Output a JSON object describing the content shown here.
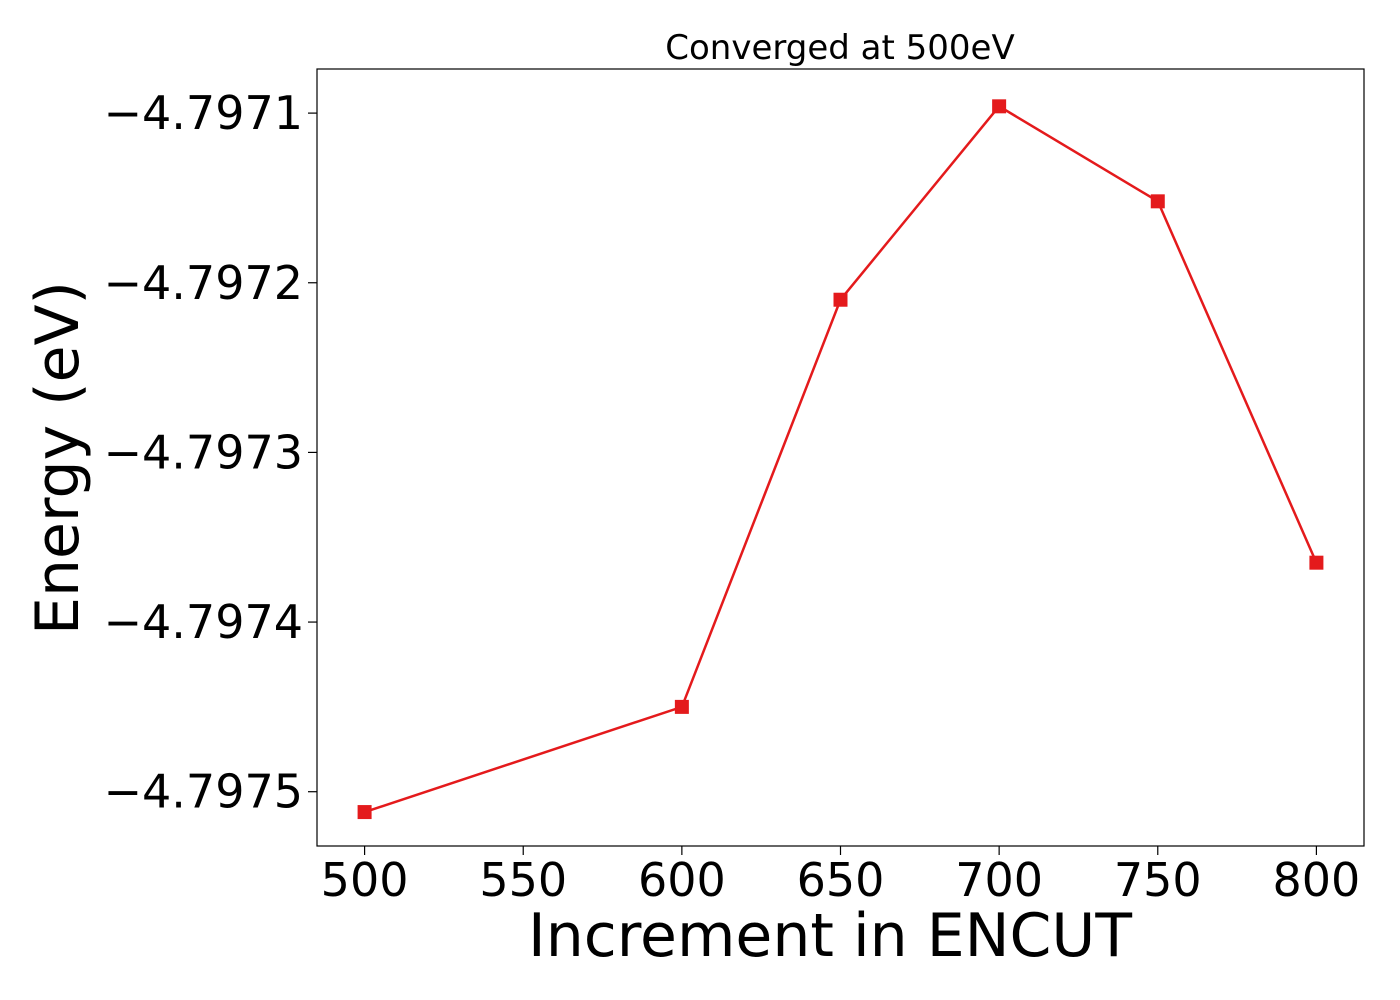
{
  "chart_data": {
    "type": "line",
    "title": "Converged at 500eV",
    "xlabel": "Increment in ENCUT",
    "ylabel": "Energy (eV)",
    "x": [
      500,
      600,
      650,
      700,
      750,
      800
    ],
    "series": [
      {
        "values": [
          -4.797512,
          -4.79745,
          -4.79721,
          -4.797096,
          -4.797152,
          -4.797365
        ],
        "color": "#e41a1c",
        "marker": "square"
      }
    ],
    "xlim": [
      485,
      815
    ],
    "ylim": [
      -4.797532,
      -4.797074
    ],
    "xticks": [
      500,
      550,
      600,
      650,
      700,
      750,
      800
    ],
    "xtick_labels": [
      "500",
      "550",
      "600",
      "650",
      "700",
      "750",
      "800"
    ],
    "yticks": [
      -4.7975,
      -4.7974,
      -4.7973,
      -4.7972,
      -4.7971
    ],
    "ytick_labels": [
      "−4.7975",
      "−4.7974",
      "−4.7973",
      "−4.7972",
      "−4.7971"
    ],
    "grid": false,
    "legend": "none"
  }
}
